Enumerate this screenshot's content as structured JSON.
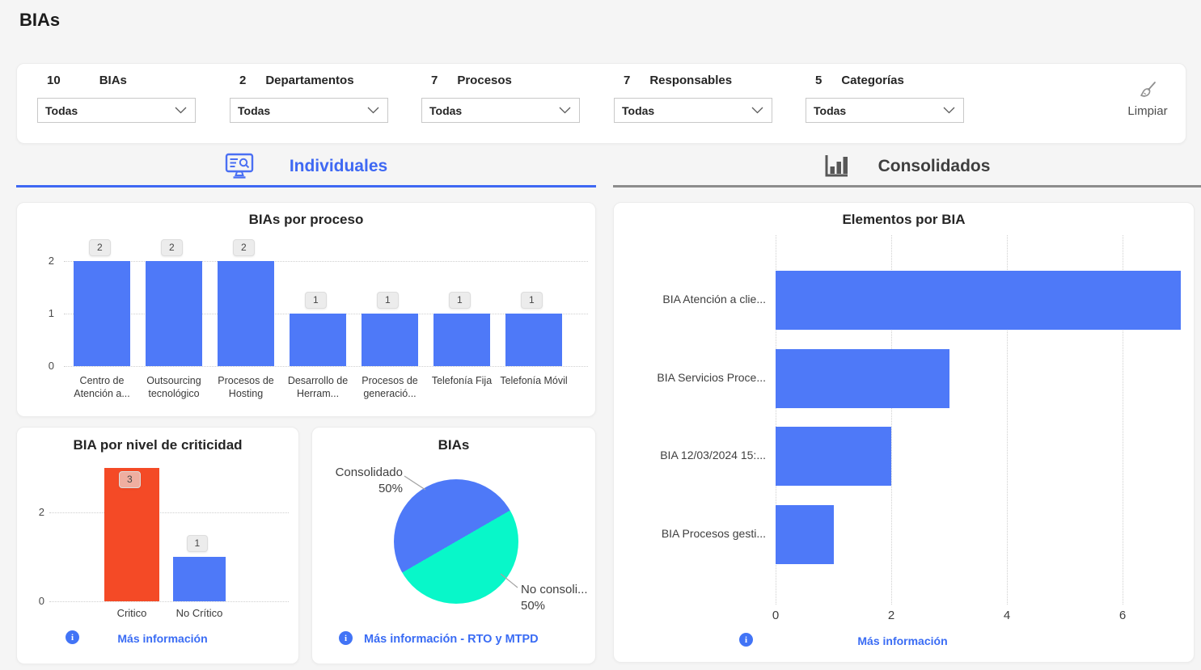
{
  "page": {
    "title": "BIAs"
  },
  "filters": {
    "items": [
      {
        "count": "10",
        "label": "BIAs",
        "value": "Todas"
      },
      {
        "count": "2",
        "label": "Departamentos",
        "value": "Todas"
      },
      {
        "count": "7",
        "label": "Procesos",
        "value": "Todas"
      },
      {
        "count": "7",
        "label": "Responsables",
        "value": "Todas"
      },
      {
        "count": "5",
        "label": "Categorías",
        "value": "Todas"
      }
    ],
    "clear_label": "Limpiar"
  },
  "tabs": [
    {
      "label": "Individuales",
      "active": true
    },
    {
      "label": "Consolidados",
      "active": false
    }
  ],
  "colors": {
    "accent_blue": "#4e79f8",
    "tab_active_blue": "#3e68f3",
    "link_blue": "#3a6cf4",
    "bar_red": "#f44a26",
    "pie_teal": "#08f7c9"
  },
  "chart_data": [
    {
      "id": "bias_por_proceso",
      "type": "bar",
      "title": "BIAs por proceso",
      "categories": [
        "Centro de Atención a...",
        "Outsourcing tecnológico",
        "Procesos de Hosting",
        "Desarrollo de Herram...",
        "Procesos de generació...",
        "Telefonía Fija",
        "Telefonía Móvil"
      ],
      "values": [
        2,
        2,
        2,
        1,
        1,
        1,
        1
      ],
      "yticks": [
        0,
        1,
        2
      ],
      "ylim": [
        0,
        2
      ],
      "bar_color": "#4e79f8",
      "grid": "horizontal dotted",
      "data_labels": true
    },
    {
      "id": "bia_por_nivel_de_criticidad",
      "type": "bar",
      "title": "BIA por nivel de criticidad",
      "categories": [
        "Critico",
        "No Crítico"
      ],
      "values": [
        3,
        1
      ],
      "bar_colors": [
        "#f44a26",
        "#4e79f8"
      ],
      "yticks": [
        0,
        2
      ],
      "ylim": [
        0,
        3
      ],
      "grid": "horizontal dotted",
      "data_labels": true,
      "footer_link": "Más información"
    },
    {
      "id": "bias_pie",
      "type": "pie",
      "title": "BIAs",
      "slices": [
        {
          "label": "Consolidado",
          "pct": "50%",
          "value": 50,
          "color": "#4e79f8"
        },
        {
          "label": "No consoli...",
          "pct": "50%",
          "value": 50,
          "color": "#08f7c9"
        }
      ],
      "footer_link": "Más información - RTO y MTPD"
    },
    {
      "id": "elementos_por_bia",
      "type": "bar-horizontal",
      "title": "Elementos por BIA",
      "categories": [
        "BIA Atención a clie...",
        "BIA Servicios Proce...",
        "BIA 12/03/2024 15:...",
        "BIA Procesos gesti..."
      ],
      "values": [
        7,
        3,
        2,
        1
      ],
      "xticks": [
        0,
        2,
        4,
        6
      ],
      "xlim": [
        0,
        7.3
      ],
      "bar_color": "#4e79f8",
      "grid": "vertical dotted",
      "footer_link": "Más información"
    }
  ]
}
